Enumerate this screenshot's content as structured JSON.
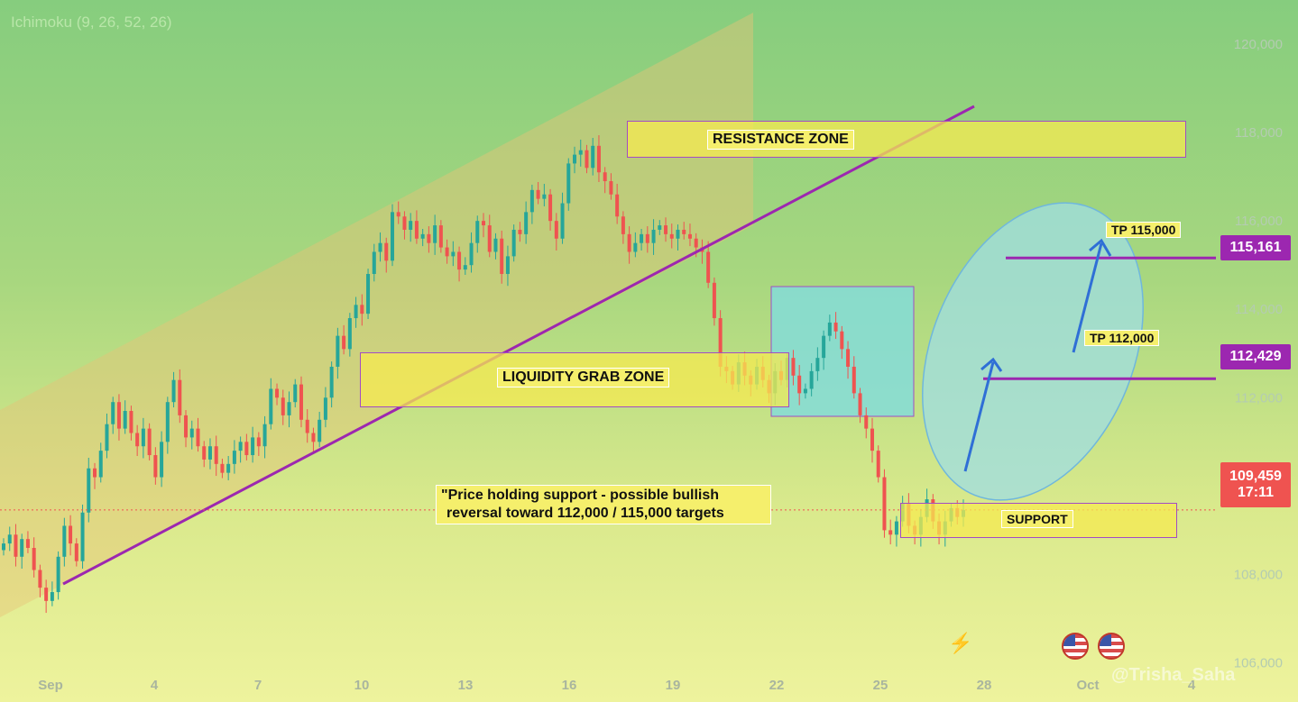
{
  "header": {
    "indicator_label": "Ichimoku (9, 26, 52, 26)"
  },
  "colors": {
    "up_candle": "#26a69a",
    "down_candle": "#ef5350",
    "trendline": "#9c27b0",
    "zone_yellow": "#f5ef6c",
    "zone_border": "#a24cc4",
    "blue_box": "#84dcd8",
    "ellipse_fill": "#9fdde3",
    "arrow": "#2f6fd6",
    "price_tag_purple": "#9c27b0",
    "price_tag_red": "#ef5350"
  },
  "annotations": {
    "resistance": "RESISTANCE ZONE",
    "liquidity": "LIQUIDITY GRAB ZONE",
    "support": "SUPPORT",
    "tp1": "TP 112,000",
    "tp2": "TP 115,000",
    "note_line1": "\"Price holding support - possible bullish",
    "note_line2": "reversal toward 112,000 / 115,000 targets"
  },
  "price_tags": {
    "tp2_level": "115,161",
    "tp1_level": "112,429",
    "last_price": "109,459",
    "countdown": "17:11"
  },
  "watermark": "@Trisha_Saha",
  "chart_data": {
    "type": "candlestick",
    "x_ticks": [
      "Sep",
      "4",
      "7",
      "10",
      "13",
      "16",
      "19",
      "22",
      "25",
      "28",
      "Oct",
      "4"
    ],
    "y_ticks": [
      "106,000",
      "108,000",
      "110,000",
      "112,000",
      "114,000",
      "116,000",
      "118,000",
      "120,000"
    ],
    "ylim": [
      105500,
      121000
    ],
    "levels": {
      "tp2": 115161,
      "tp1": 112429,
      "last": 109459
    },
    "zones": {
      "resistance": [
        117300,
        118300
      ],
      "liquidity_grab": [
        110900,
        112400
      ],
      "support": [
        107800,
        108700
      ]
    },
    "series_close": [
      108700,
      108900,
      108400,
      108800,
      108600,
      108100,
      107700,
      107400,
      107600,
      108400,
      109100,
      108700,
      108300,
      109400,
      110400,
      110200,
      110800,
      111400,
      111900,
      111300,
      111700,
      111200,
      110900,
      111300,
      110700,
      110200,
      111000,
      111900,
      112400,
      111600,
      111100,
      111300,
      110900,
      110600,
      110900,
      110500,
      110300,
      110500,
      110800,
      111000,
      110700,
      111100,
      110900,
      111400,
      112200,
      112000,
      111600,
      111900,
      112300,
      111500,
      111200,
      111000,
      111500,
      112000,
      112700,
      113400,
      113100,
      113800,
      114100,
      113900,
      114800,
      115300,
      115500,
      115100,
      116200,
      116100,
      115800,
      116000,
      115600,
      115700,
      115500,
      115900,
      115400,
      115200,
      115300,
      114900,
      115000,
      115500,
      116000,
      115900,
      115300,
      115600,
      114800,
      115200,
      115800,
      115700,
      116200,
      116700,
      116500,
      116600,
      116000,
      115600,
      116400,
      117300,
      117500,
      117600,
      117200,
      117700,
      117100,
      116900,
      116600,
      116100,
      115700,
      115300,
      115500,
      115700,
      115500,
      115800,
      115900,
      115700,
      115600,
      115800,
      115700,
      115600,
      115400,
      115300,
      114600,
      113800,
      112700,
      112600,
      112300,
      112800,
      112500,
      112300,
      112700,
      112400,
      112100,
      112600,
      112400,
      112900,
      112500,
      112100,
      112200,
      112600,
      112900,
      113400,
      113700,
      113500,
      113100,
      112700,
      112100,
      111600,
      111300,
      110800,
      110200,
      109000,
      108900,
      109200,
      109600,
      109100,
      108900,
      109300,
      109700,
      109200,
      108900,
      109200,
      109500,
      109300,
      109459
    ]
  }
}
